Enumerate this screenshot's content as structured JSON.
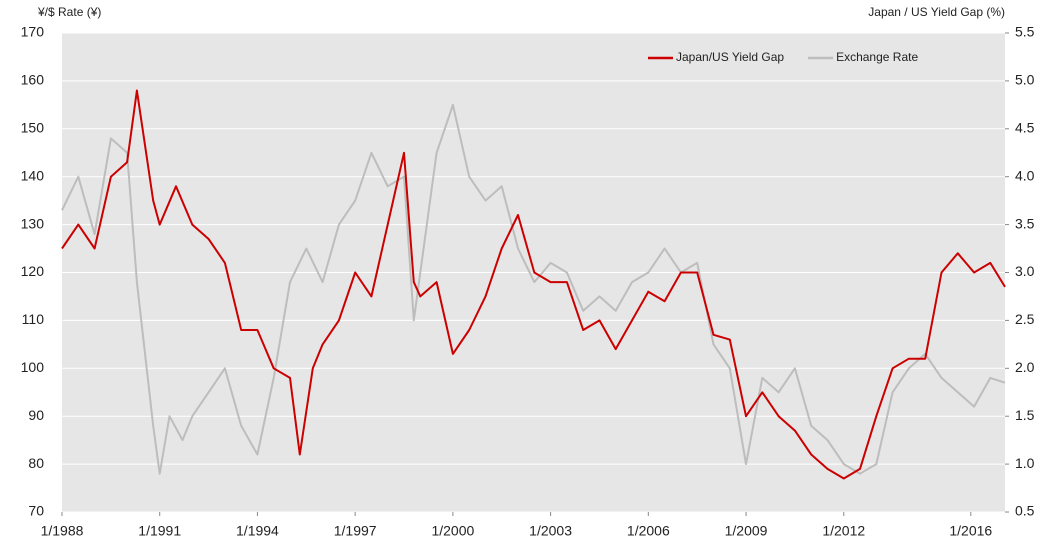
{
  "chart_data": {
    "type": "line",
    "y_label": "¥/$ Rate (¥)",
    "y2_label": "Japan / US  Yield Gap (%)",
    "xlim": [
      1988,
      2016.95
    ],
    "xticks": [
      {
        "value": 1988,
        "label": "1/1988"
      },
      {
        "value": 1991,
        "label": "1/1991"
      },
      {
        "value": 1994,
        "label": "1/1994"
      },
      {
        "value": 1997,
        "label": "1/1997"
      },
      {
        "value": 2000,
        "label": "1/2000"
      },
      {
        "value": 2003,
        "label": "1/2003"
      },
      {
        "value": 2006,
        "label": "1/2006"
      },
      {
        "value": 2009,
        "label": "1/2009"
      },
      {
        "value": 2012,
        "label": "1/2012"
      },
      {
        "value": 2015.9,
        "label": "1/2016"
      }
    ],
    "ylim": [
      70,
      170
    ],
    "yticks": [
      70,
      80,
      90,
      100,
      110,
      120,
      130,
      140,
      150,
      160,
      170
    ],
    "y2lim": [
      0.5,
      5.5
    ],
    "y2ticks": [
      0.5,
      {
        "value": 1,
        "label": "1.0"
      },
      1.5,
      {
        "value": 2,
        "label": "2.0"
      },
      2.5,
      {
        "value": 3,
        "label": "3.0"
      },
      3.5,
      {
        "value": 4,
        "label": "4.0"
      },
      4.5,
      {
        "value": 5,
        "label": "5.0"
      },
      5.5
    ],
    "grid": true,
    "legend": "top-right",
    "series": [
      {
        "name": "Japan/US Yield Gap",
        "color": "#cc0000",
        "axis": "y2",
        "x": [
          1988,
          1988.5,
          1989,
          1989.5,
          1990,
          1990.3,
          1990.8,
          1991,
          1991.5,
          1992,
          1992.5,
          1993,
          1993.5,
          1994,
          1994.5,
          1995,
          1995.3,
          1995.7,
          1996,
          1996.5,
          1997,
          1997.5,
          1998,
          1998.5,
          1998.8,
          1999,
          1999.5,
          2000,
          2000.5,
          2001,
          2001.5,
          2002,
          2002.5,
          2003,
          2003.5,
          2004,
          2004.5,
          2005,
          2005.5,
          2006,
          2006.5,
          2007,
          2007.5,
          2008,
          2008.5,
          2009,
          2009.5,
          2010,
          2010.5,
          2011,
          2011.5,
          2012,
          2012.5,
          2013,
          2013.5,
          2014,
          2014.5,
          2015,
          2015.5,
          2016,
          2016.5,
          2016.95
        ],
        "values": [
          3.25,
          3.5,
          3.25,
          4.0,
          4.15,
          4.9,
          3.75,
          3.5,
          3.9,
          3.5,
          3.35,
          3.1,
          2.4,
          2.4,
          2.0,
          1.9,
          1.1,
          2.0,
          2.25,
          2.5,
          3.0,
          2.75,
          3.5,
          4.25,
          2.9,
          2.75,
          2.9,
          2.15,
          2.4,
          2.75,
          3.25,
          3.6,
          3.0,
          2.9,
          2.9,
          2.4,
          2.5,
          2.2,
          2.5,
          2.8,
          2.7,
          3.0,
          3.0,
          2.35,
          2.3,
          1.5,
          1.75,
          1.5,
          1.35,
          1.1,
          0.95,
          0.85,
          0.95,
          1.5,
          2.0,
          2.1,
          2.1,
          3.0,
          3.2,
          3.0,
          3.1,
          2.85
        ]
      },
      {
        "name": "Exchange Rate",
        "color": "#bdbdbd",
        "x": [
          1988,
          1988.5,
          1989,
          1989.5,
          1990,
          1990.3,
          1990.8,
          1991,
          1991.3,
          1991.7,
          1992,
          1992.5,
          1993,
          1993.5,
          1994,
          1994.5,
          1995,
          1995.5,
          1996,
          1996.5,
          1997,
          1997.5,
          1998,
          1998.5,
          1998.8,
          1999,
          1999.5,
          2000,
          2000.5,
          2001,
          2001.5,
          2002,
          2002.5,
          2003,
          2003.5,
          2004,
          2004.5,
          2005,
          2005.5,
          2006,
          2006.5,
          2007,
          2007.5,
          2008,
          2008.5,
          2009,
          2009.5,
          2010,
          2010.5,
          2011,
          2011.5,
          2012,
          2012.5,
          2013,
          2013.5,
          2014,
          2014.5,
          2015,
          2015.5,
          2016,
          2016.5,
          2016.95
        ],
        "values": [
          133,
          140,
          128,
          148,
          145,
          118,
          88,
          78,
          90,
          85,
          90,
          95,
          100,
          88,
          82,
          98,
          118,
          125,
          118,
          130,
          135,
          145,
          138,
          140,
          110,
          120,
          145,
          155,
          140,
          135,
          138,
          125,
          118,
          122,
          120,
          112,
          115,
          112,
          118,
          120,
          125,
          120,
          122,
          105,
          100,
          80,
          98,
          95,
          100,
          88,
          85,
          80,
          78,
          80,
          95,
          100,
          103,
          98,
          95,
          92,
          98,
          97
        ]
      }
    ]
  }
}
